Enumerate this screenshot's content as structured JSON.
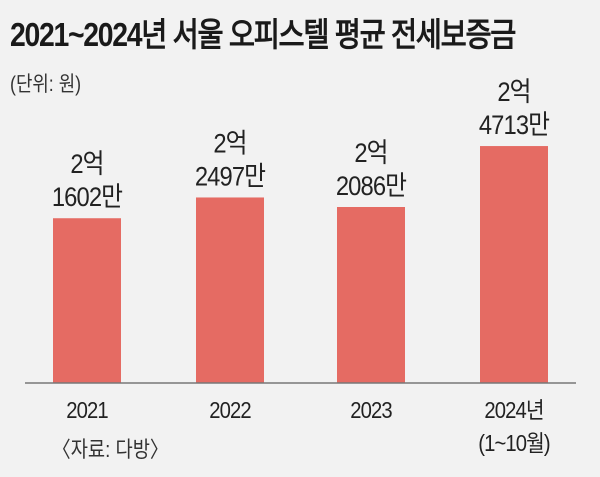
{
  "chart_data": {
    "type": "bar",
    "title": "2021~2024년 서울 오피스텔 평균 전세보증금",
    "unit_note": "(단위: 원)",
    "source": "〈자료: 다방〉",
    "categories": [
      "2021",
      "2022",
      "2023",
      "2024년"
    ],
    "category_sublabels": [
      "",
      "",
      "",
      "(1~10월)"
    ],
    "values": [
      21602,
      22497,
      22086,
      24713
    ],
    "value_unit": "만원",
    "data_labels": [
      [
        "2억",
        "1602만"
      ],
      [
        "2억",
        "2497만"
      ],
      [
        "2억",
        "2086만"
      ],
      [
        "2억",
        "4713만"
      ]
    ],
    "ylim": [
      14500,
      25500
    ],
    "grid": false,
    "legend": "none",
    "colors": {
      "bar": "#e56b63",
      "background": "#f2f2f2",
      "axis": "#777777"
    }
  }
}
